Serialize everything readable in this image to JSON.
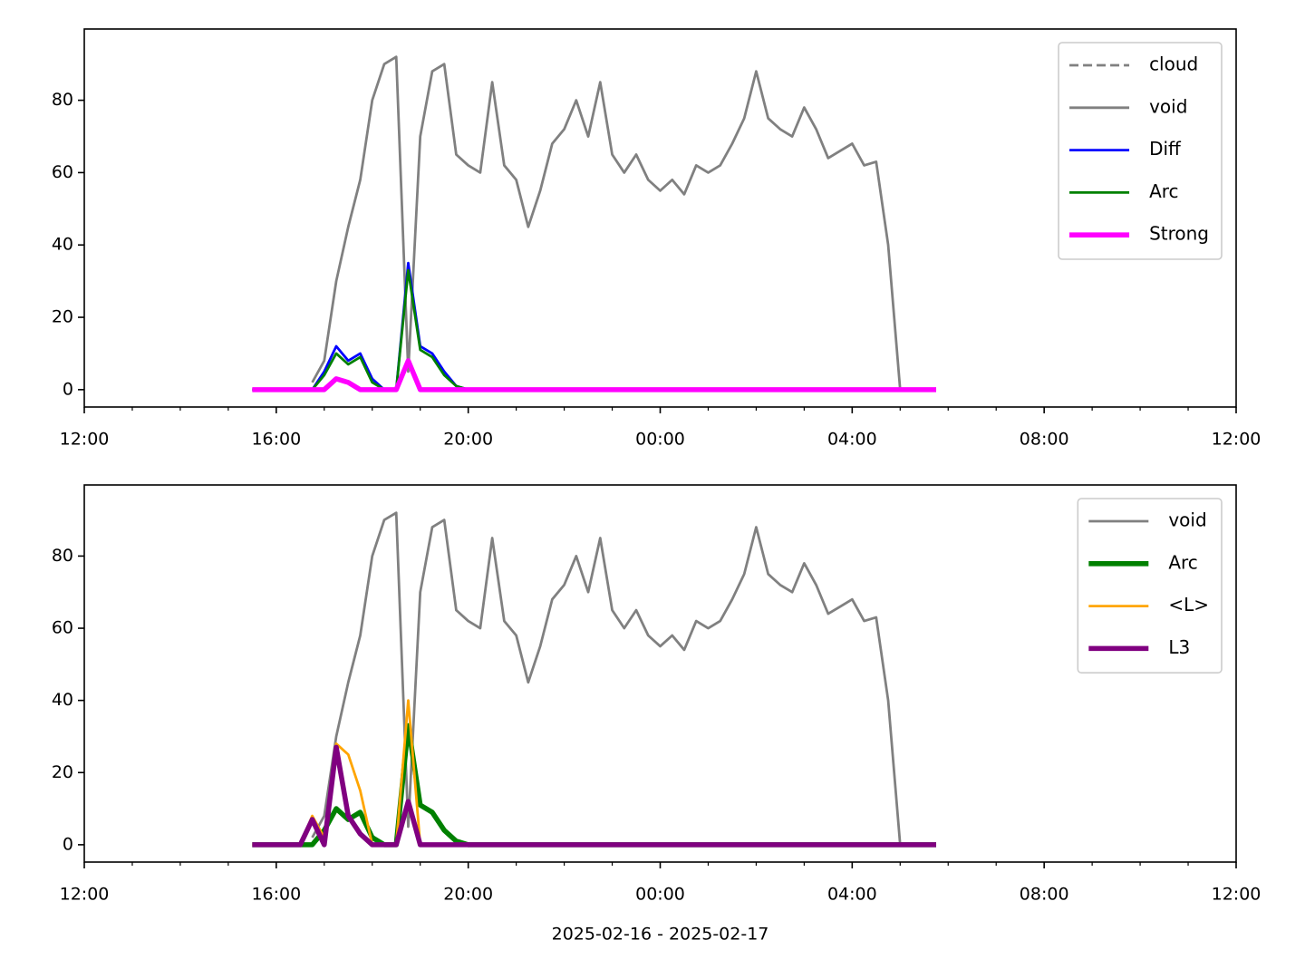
{
  "chart_data": [
    {
      "type": "line",
      "x": [
        "2025-02-16T15:30",
        "2025-02-16T15:45",
        "2025-02-16T16:00",
        "2025-02-16T16:15",
        "2025-02-16T16:30",
        "2025-02-16T16:45",
        "2025-02-16T17:00",
        "2025-02-16T17:15",
        "2025-02-16T17:30",
        "2025-02-16T17:45",
        "2025-02-16T18:00",
        "2025-02-16T18:15",
        "2025-02-16T18:30",
        "2025-02-16T18:45",
        "2025-02-16T19:00",
        "2025-02-16T19:15",
        "2025-02-16T19:30",
        "2025-02-16T19:45",
        "2025-02-16T20:00",
        "2025-02-16T20:15",
        "2025-02-16T20:30",
        "2025-02-16T20:45",
        "2025-02-16T21:00",
        "2025-02-16T21:15",
        "2025-02-16T21:30",
        "2025-02-16T21:45",
        "2025-02-16T22:00",
        "2025-02-16T22:15",
        "2025-02-16T22:30",
        "2025-02-16T22:45",
        "2025-02-16T23:00",
        "2025-02-16T23:15",
        "2025-02-16T23:30",
        "2025-02-16T23:45",
        "2025-02-17T00:00",
        "2025-02-17T00:15",
        "2025-02-17T00:30",
        "2025-02-17T00:45",
        "2025-02-17T01:00",
        "2025-02-17T01:15",
        "2025-02-17T01:30",
        "2025-02-17T01:45",
        "2025-02-17T02:00",
        "2025-02-17T02:15",
        "2025-02-17T02:30",
        "2025-02-17T02:45",
        "2025-02-17T03:00",
        "2025-02-17T03:15",
        "2025-02-17T03:30",
        "2025-02-17T03:45",
        "2025-02-17T04:00",
        "2025-02-17T04:15",
        "2025-02-17T04:30",
        "2025-02-17T04:45",
        "2025-02-17T05:00",
        "2025-02-17T05:15",
        "2025-02-17T05:30",
        "2025-02-17T05:45"
      ],
      "series": [
        {
          "name": "cloud",
          "color": "#808080",
          "linewidth": 1,
          "linestyle": "dashed",
          "values": [
            null,
            null,
            null,
            null,
            null,
            null,
            null,
            null,
            null,
            null,
            null,
            null,
            null,
            null,
            null,
            null,
            null,
            null,
            null,
            null,
            null,
            null,
            null,
            null,
            null,
            null,
            null,
            null,
            null,
            null,
            null,
            null,
            null,
            null,
            null,
            null,
            null,
            null,
            null,
            null,
            null,
            null,
            null,
            null,
            null,
            null,
            null,
            null,
            null,
            null,
            null,
            null,
            null,
            null,
            null,
            null,
            null,
            null
          ]
        },
        {
          "name": "void",
          "color": "#808080",
          "linewidth": 1,
          "values": [
            null,
            null,
            null,
            null,
            null,
            2,
            8,
            30,
            45,
            58,
            80,
            90,
            92,
            5,
            70,
            88,
            90,
            65,
            62,
            60,
            85,
            62,
            58,
            45,
            55,
            68,
            72,
            80,
            70,
            85,
            65,
            60,
            65,
            58,
            55,
            58,
            54,
            62,
            60,
            62,
            68,
            75,
            88,
            75,
            72,
            70,
            78,
            72,
            64,
            66,
            68,
            62,
            63,
            40,
            0,
            null,
            null,
            null
          ]
        },
        {
          "name": "Diff",
          "color": "#0000ff",
          "linewidth": 1,
          "values": [
            0,
            0,
            0,
            0,
            0,
            0,
            5,
            12,
            8,
            10,
            3,
            0,
            0,
            35,
            12,
            10,
            5,
            1,
            0,
            0,
            0,
            0,
            0,
            0,
            0,
            0,
            0,
            0,
            0,
            0,
            0,
            0,
            0,
            0,
            0,
            0,
            0,
            0,
            0,
            0,
            0,
            0,
            0,
            0,
            0,
            0,
            0,
            0,
            0,
            0,
            0,
            0,
            0,
            0,
            0,
            0,
            0,
            0
          ]
        },
        {
          "name": "Arc",
          "color": "#008000",
          "linewidth": 1,
          "values": [
            0,
            0,
            0,
            0,
            0,
            0,
            4,
            10,
            7,
            9,
            2,
            0,
            0,
            33,
            11,
            9,
            4,
            1,
            0,
            0,
            0,
            0,
            0,
            0,
            0,
            0,
            0,
            0,
            0,
            0,
            0,
            0,
            0,
            0,
            0,
            0,
            0,
            0,
            0,
            0,
            0,
            0,
            0,
            0,
            0,
            0,
            0,
            0,
            0,
            0,
            0,
            0,
            0,
            0,
            0,
            0,
            0,
            0
          ]
        },
        {
          "name": "Strong",
          "color": "#ff00ff",
          "linewidth": 2,
          "values": [
            0,
            0,
            0,
            0,
            0,
            0,
            0,
            3,
            2,
            0,
            0,
            0,
            0,
            8,
            0,
            0,
            0,
            0,
            0,
            0,
            0,
            0,
            0,
            0,
            0,
            0,
            0,
            0,
            0,
            0,
            0,
            0,
            0,
            0,
            0,
            0,
            0,
            0,
            0,
            0,
            0,
            0,
            0,
            0,
            0,
            0,
            0,
            0,
            0,
            0,
            0,
            0,
            0,
            0,
            0,
            0,
            0,
            0
          ]
        }
      ],
      "xlim": [
        "2025-02-16T12:00",
        "2025-02-17T12:00"
      ],
      "xticks": [
        {
          "value": "2025-02-16T12:00",
          "label": "12:00"
        },
        {
          "value": "2025-02-16T16:00",
          "label": "16:00"
        },
        {
          "value": "2025-02-16T20:00",
          "label": "20:00"
        },
        {
          "value": "2025-02-17T00:00",
          "label": "00:00"
        },
        {
          "value": "2025-02-17T04:00",
          "label": "04:00"
        },
        {
          "value": "2025-02-17T08:00",
          "label": "08:00"
        },
        {
          "value": "2025-02-17T12:00",
          "label": "12:00"
        }
      ],
      "xminorticks": [
        "2025-02-16T13:00",
        "2025-02-16T14:00",
        "2025-02-16T15:00",
        "2025-02-16T17:00",
        "2025-02-16T18:00",
        "2025-02-16T19:00",
        "2025-02-16T21:00",
        "2025-02-16T22:00",
        "2025-02-16T23:00",
        "2025-02-17T01:00",
        "2025-02-17T02:00",
        "2025-02-17T03:00",
        "2025-02-17T05:00",
        "2025-02-17T06:00",
        "2025-02-17T07:00",
        "2025-02-17T09:00",
        "2025-02-17T10:00",
        "2025-02-17T11:00"
      ],
      "ylim": [
        -4.8,
        99.7
      ],
      "yticks": [
        0,
        20,
        40,
        60,
        80
      ],
      "legend": "upper right"
    },
    {
      "type": "line",
      "x": [
        "2025-02-16T15:30",
        "2025-02-16T15:45",
        "2025-02-16T16:00",
        "2025-02-16T16:15",
        "2025-02-16T16:30",
        "2025-02-16T16:45",
        "2025-02-16T17:00",
        "2025-02-16T17:15",
        "2025-02-16T17:30",
        "2025-02-16T17:45",
        "2025-02-16T18:00",
        "2025-02-16T18:15",
        "2025-02-16T18:30",
        "2025-02-16T18:45",
        "2025-02-16T19:00",
        "2025-02-16T19:15",
        "2025-02-16T19:30",
        "2025-02-16T19:45",
        "2025-02-16T20:00",
        "2025-02-16T20:15",
        "2025-02-16T20:30",
        "2025-02-16T20:45",
        "2025-02-16T21:00",
        "2025-02-16T21:15",
        "2025-02-16T21:30",
        "2025-02-16T21:45",
        "2025-02-16T22:00",
        "2025-02-16T22:15",
        "2025-02-16T22:30",
        "2025-02-16T22:45",
        "2025-02-16T23:00",
        "2025-02-16T23:15",
        "2025-02-16T23:30",
        "2025-02-16T23:45",
        "2025-02-17T00:00",
        "2025-02-17T00:15",
        "2025-02-17T00:30",
        "2025-02-17T00:45",
        "2025-02-17T01:00",
        "2025-02-17T01:15",
        "2025-02-17T01:30",
        "2025-02-17T01:45",
        "2025-02-17T02:00",
        "2025-02-17T02:15",
        "2025-02-17T02:30",
        "2025-02-17T02:45",
        "2025-02-17T03:00",
        "2025-02-17T03:15",
        "2025-02-17T03:30",
        "2025-02-17T03:45",
        "2025-02-17T04:00",
        "2025-02-17T04:15",
        "2025-02-17T04:30",
        "2025-02-17T04:45",
        "2025-02-17T05:00",
        "2025-02-17T05:15",
        "2025-02-17T05:30",
        "2025-02-17T05:45"
      ],
      "series": [
        {
          "name": "void",
          "color": "#808080",
          "linewidth": 1,
          "values": [
            null,
            null,
            null,
            null,
            null,
            2,
            8,
            30,
            45,
            58,
            80,
            90,
            92,
            5,
            70,
            88,
            90,
            65,
            62,
            60,
            85,
            62,
            58,
            45,
            55,
            68,
            72,
            80,
            70,
            85,
            65,
            60,
            65,
            58,
            55,
            58,
            54,
            62,
            60,
            62,
            68,
            75,
            88,
            75,
            72,
            70,
            78,
            72,
            64,
            66,
            68,
            62,
            63,
            40,
            0,
            null,
            null,
            null
          ]
        },
        {
          "name": "Arc",
          "color": "#008000",
          "linewidth": 2,
          "values": [
            0,
            0,
            0,
            0,
            0,
            0,
            4,
            10,
            7,
            9,
            2,
            0,
            0,
            33,
            11,
            9,
            4,
            1,
            0,
            0,
            0,
            0,
            0,
            0,
            0,
            0,
            0,
            0,
            0,
            0,
            0,
            0,
            0,
            0,
            0,
            0,
            0,
            0,
            0,
            0,
            0,
            0,
            0,
            0,
            0,
            0,
            0,
            0,
            0,
            0,
            0,
            0,
            0,
            0,
            0,
            0,
            0,
            0
          ]
        },
        {
          "name": "<L>",
          "color": "#ffa500",
          "linewidth": 1,
          "values": [
            0,
            0,
            0,
            0,
            0,
            8,
            2,
            28,
            25,
            15,
            0,
            0,
            0,
            40,
            0,
            0,
            0,
            0,
            0,
            0,
            0,
            0,
            0,
            0,
            0,
            0,
            0,
            0,
            0,
            0,
            0,
            0,
            0,
            0,
            0,
            0,
            0,
            0,
            0,
            0,
            0,
            0,
            0,
            0,
            0,
            0,
            0,
            0,
            0,
            0,
            0,
            0,
            0,
            0,
            0,
            0,
            0,
            0
          ]
        },
        {
          "name": "L3",
          "color": "#800080",
          "linewidth": 2,
          "values": [
            0,
            0,
            0,
            0,
            0,
            7,
            0,
            27,
            8,
            3,
            0,
            0,
            0,
            12,
            0,
            0,
            0,
            0,
            0,
            0,
            0,
            0,
            0,
            0,
            0,
            0,
            0,
            0,
            0,
            0,
            0,
            0,
            0,
            0,
            0,
            0,
            0,
            0,
            0,
            0,
            0,
            0,
            0,
            0,
            0,
            0,
            0,
            0,
            0,
            0,
            0,
            0,
            0,
            0,
            0,
            0,
            0,
            0
          ]
        }
      ],
      "xlim": [
        "2025-02-16T12:00",
        "2025-02-17T12:00"
      ],
      "xticks": [
        {
          "value": "2025-02-16T12:00",
          "label": "12:00"
        },
        {
          "value": "2025-02-16T16:00",
          "label": "16:00"
        },
        {
          "value": "2025-02-16T20:00",
          "label": "20:00"
        },
        {
          "value": "2025-02-17T00:00",
          "label": "00:00"
        },
        {
          "value": "2025-02-17T04:00",
          "label": "04:00"
        },
        {
          "value": "2025-02-17T08:00",
          "label": "08:00"
        },
        {
          "value": "2025-02-17T12:00",
          "label": "12:00"
        }
      ],
      "xminorticks": [
        "2025-02-16T13:00",
        "2025-02-16T14:00",
        "2025-02-16T15:00",
        "2025-02-16T17:00",
        "2025-02-16T18:00",
        "2025-02-16T19:00",
        "2025-02-16T21:00",
        "2025-02-16T22:00",
        "2025-02-16T23:00",
        "2025-02-17T01:00",
        "2025-02-17T02:00",
        "2025-02-17T03:00",
        "2025-02-17T05:00",
        "2025-02-17T06:00",
        "2025-02-17T07:00",
        "2025-02-17T09:00",
        "2025-02-17T10:00",
        "2025-02-17T11:00"
      ],
      "ylim": [
        -4.8,
        99.7
      ],
      "yticks": [
        0,
        20,
        40,
        60,
        80
      ],
      "legend": "upper right",
      "xlabel": "2025-02-16 - 2025-02-17"
    }
  ]
}
